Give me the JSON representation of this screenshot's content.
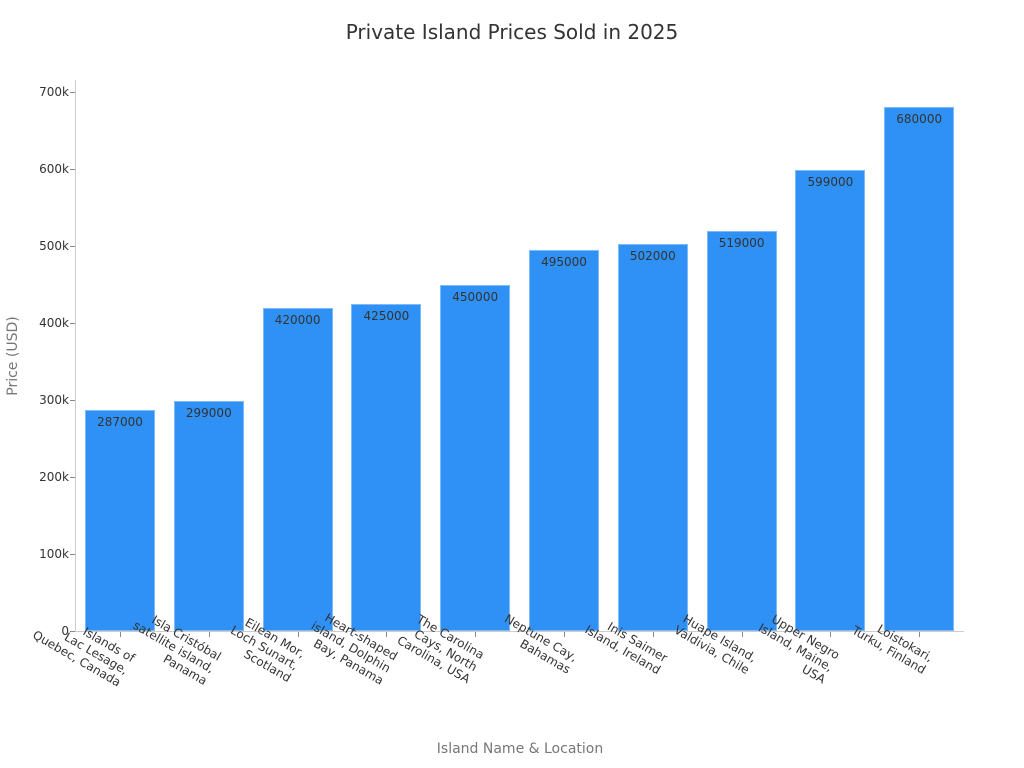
{
  "chart_data": {
    "type": "bar",
    "title": "Private Island Prices Sold in 2025",
    "xlabel": "Island Name & Location",
    "ylabel": "Price (USD)",
    "ylim": [
      0,
      700000
    ],
    "yticks": [
      "0",
      "100k",
      "200k",
      "300k",
      "400k",
      "500k",
      "600k",
      "700k"
    ],
    "grid": false,
    "legend": null,
    "bar_color": "#2f91f5",
    "categories": [
      "Islands of Lac Lesage, Quebec, Canada",
      "Isla Cristóbal satellite island, Panama",
      "Eilean Mor, Loch Sunart, Scotland",
      "Heart-shaped island, Dolphin Bay, Panama",
      "The Carolina Cays, North Carolina, USA",
      "Neptune Cay, Bahamas",
      "Inis Saimer Island, Ireland",
      "Huape Island, Valdivia, Chile",
      "Upper Negro Island, Maine, USA",
      "Loistokari, Turku, Finland"
    ],
    "category_lines": [
      "Islands of\nLac Lesage,\nQuebec, Canada",
      "Isla Cristóbal\nsatellite island,\nPanama",
      "Eilean Mor,\nLoch Sunart,\nScotland",
      "Heart-shaped\nisland, Dolphin\nBay, Panama",
      "The Carolina\nCays, North\nCarolina, USA",
      "Neptune Cay,\nBahamas",
      "Inis Saimer\nIsland, Ireland",
      "Huape Island,\nValdivia, Chile",
      "Upper Negro\nIsland, Maine,\nUSA",
      "Loistokari,\nTurku, Finland"
    ],
    "values": [
      287000,
      299000,
      420000,
      425000,
      450000,
      495000,
      502000,
      519000,
      599000,
      680000
    ],
    "value_labels": [
      "287000",
      "299000",
      "420000",
      "425000",
      "450000",
      "495000",
      "502000",
      "519000",
      "599000",
      "680000"
    ]
  }
}
